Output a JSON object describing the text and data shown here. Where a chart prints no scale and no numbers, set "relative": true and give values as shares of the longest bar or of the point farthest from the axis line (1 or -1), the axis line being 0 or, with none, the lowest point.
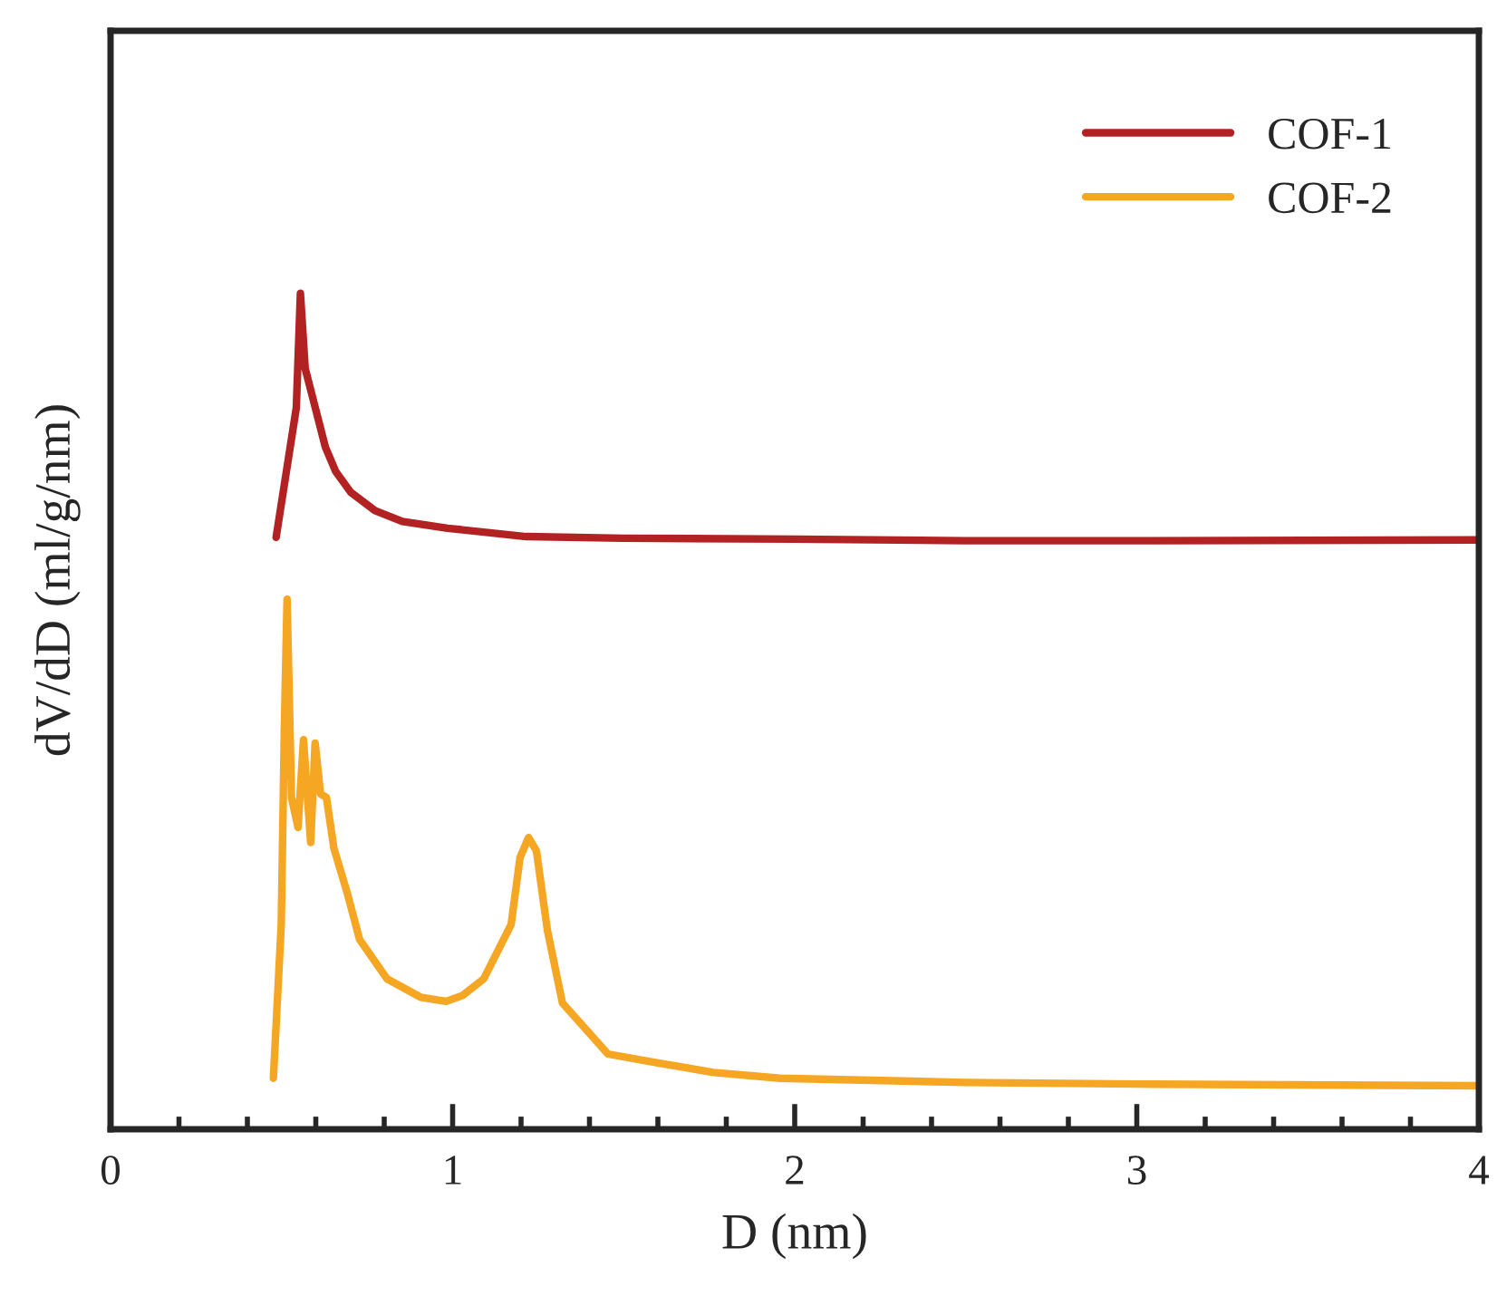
{
  "chart_data": {
    "type": "line",
    "relative": true,
    "xlabel": "D (nm)",
    "ylabel": "dV/dD (ml/g/nm)",
    "xlim": [
      0,
      4
    ],
    "xticks": [
      0,
      {
        "value": 0.2,
        "label": null
      },
      {
        "value": 0.4,
        "label": null
      },
      {
        "value": 0.6,
        "label": null
      },
      {
        "value": 0.8,
        "label": null
      },
      1,
      {
        "value": 1.2,
        "label": null
      },
      {
        "value": 1.4,
        "label": null
      },
      {
        "value": 1.6,
        "label": null
      },
      {
        "value": 1.8,
        "label": null
      },
      2,
      {
        "value": 2.2,
        "label": null
      },
      {
        "value": 2.4,
        "label": null
      },
      {
        "value": 2.6,
        "label": null
      },
      {
        "value": 2.8,
        "label": null
      },
      3,
      {
        "value": 3.2,
        "label": null
      },
      {
        "value": 3.4,
        "label": null
      },
      {
        "value": 3.6,
        "label": null
      },
      {
        "value": 3.8,
        "label": null
      },
      4
    ],
    "tick_labels": "x",
    "grid": false,
    "legend": "top right",
    "marker": "none",
    "line_style": "solid",
    "series": [
      {
        "name": "COF-1",
        "color": "#b22222",
        "x": [
          0.484,
          0.543,
          0.555,
          0.569,
          0.596,
          0.628,
          0.658,
          0.702,
          0.773,
          0.853,
          0.985,
          1.215,
          1.498,
          2.0,
          2.5,
          3.0,
          4.0
        ],
        "values": [
          0.708,
          0.863,
          1.0,
          0.91,
          0.867,
          0.816,
          0.787,
          0.762,
          0.74,
          0.727,
          0.719,
          0.709,
          0.707,
          0.706,
          0.704,
          0.704,
          0.705
        ]
      },
      {
        "name": "COF-2",
        "color": "#f5a623",
        "x": [
          0.476,
          0.499,
          0.508,
          0.516,
          0.529,
          0.548,
          0.564,
          0.585,
          0.598,
          0.614,
          0.631,
          0.653,
          0.693,
          0.728,
          0.808,
          0.906,
          0.981,
          1.029,
          1.091,
          1.171,
          1.197,
          1.222,
          1.245,
          1.277,
          1.321,
          1.454,
          1.604,
          1.763,
          1.958,
          2.5,
          3.0,
          4.0
        ],
        "values": [
          0.061,
          0.245,
          0.477,
          0.634,
          0.397,
          0.361,
          0.466,
          0.343,
          0.462,
          0.401,
          0.397,
          0.336,
          0.281,
          0.227,
          0.18,
          0.158,
          0.153,
          0.16,
          0.18,
          0.245,
          0.325,
          0.349,
          0.333,
          0.238,
          0.151,
          0.09,
          0.079,
          0.068,
          0.061,
          0.056,
          0.054,
          0.052
        ]
      }
    ]
  }
}
